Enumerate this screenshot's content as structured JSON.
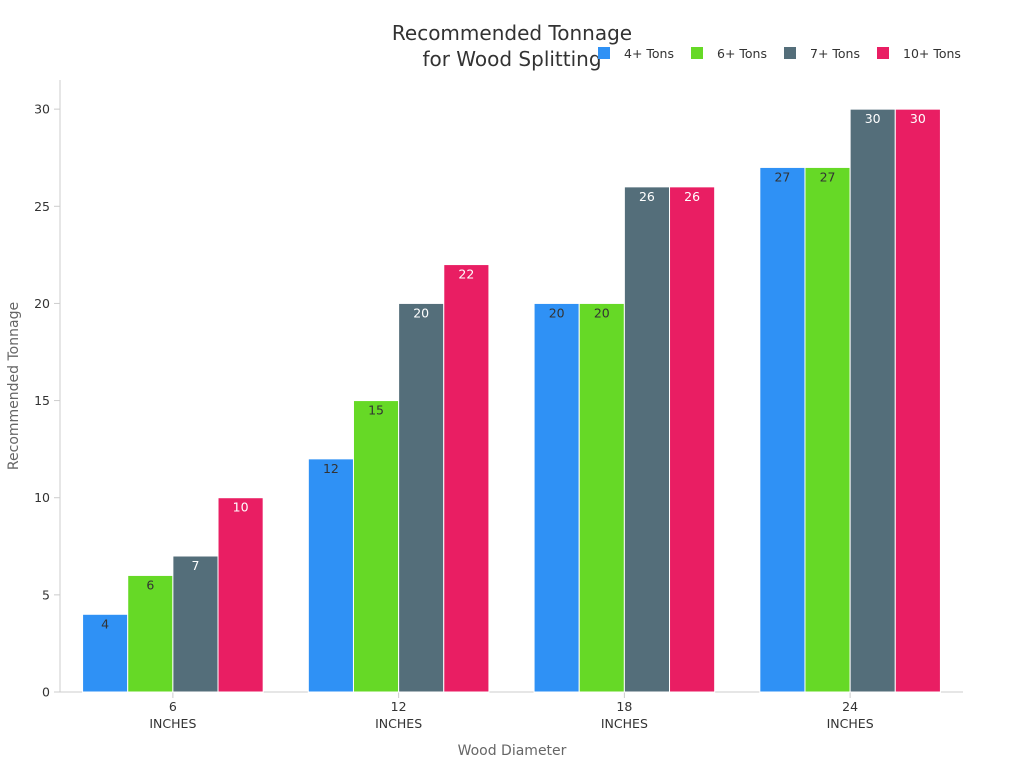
{
  "chart_data": {
    "type": "bar",
    "title": [
      "Recommended Tonnage",
      "for Wood Splitting"
    ],
    "xlabel": "Wood Diameter",
    "ylabel": "Recommended Tonnage",
    "categories": [
      {
        "value": "6",
        "unit": "INCHES"
      },
      {
        "value": "12",
        "unit": "INCHES"
      },
      {
        "value": "18",
        "unit": "INCHES"
      },
      {
        "value": "24",
        "unit": "INCHES"
      }
    ],
    "series": [
      {
        "name": "4+ Tons",
        "color": "#2f91f5",
        "label_color": "#333333",
        "values": [
          4,
          12,
          20,
          27
        ]
      },
      {
        "name": "6+ Tons",
        "color": "#66d926",
        "label_color": "#333333",
        "values": [
          6,
          15,
          20,
          27
        ]
      },
      {
        "name": "7+ Tons",
        "color": "#546e7a",
        "label_color": "#ffffff",
        "values": [
          7,
          20,
          26,
          30
        ]
      },
      {
        "name": "10+ Tons",
        "color": "#e91e63",
        "label_color": "#ffffff",
        "values": [
          10,
          22,
          26,
          30
        ]
      }
    ],
    "ylim": [
      0,
      31.5
    ],
    "yticks": [
      0,
      5,
      10,
      15,
      20,
      25,
      30
    ],
    "grid": false,
    "legend_position": "top-right"
  }
}
